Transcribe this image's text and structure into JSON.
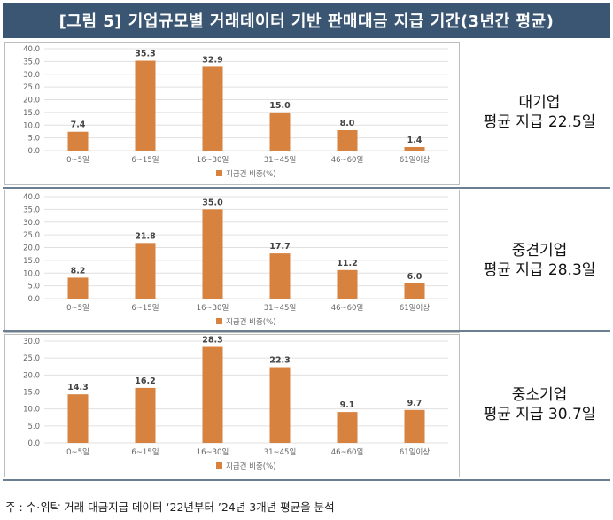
{
  "title": "[그림 5] 기업규모별 거래데이터 기반 판매대금 지급 기간(3년간 평균)",
  "footnote": "주 : 수·위탁 거래 대금지급 데이터 ‘22년부터 ’24년 3개년 평균을 분석",
  "colors": {
    "bar": "#d7823f",
    "header_bg": "#3a5672",
    "grid": "#e0e0e0"
  },
  "chart_data": [
    {
      "type": "bar",
      "categories": [
        "0~5일",
        "6~15일",
        "16~30일",
        "31~45일",
        "46~60일",
        "61일이상"
      ],
      "series": [
        {
          "name": "지급건 비중(%)",
          "values": [
            7.4,
            35.3,
            32.9,
            15.0,
            8.0,
            1.4
          ]
        }
      ],
      "value_labels": [
        "7.4",
        "35.3",
        "32.9",
        "15.0",
        "8.0",
        "1.4"
      ],
      "ylim": [
        0,
        40
      ],
      "yticks": [
        "0.0",
        "5.0",
        "10.0",
        "15.0",
        "20.0",
        "25.0",
        "30.0",
        "35.0",
        "40.0"
      ],
      "legend_position": "bottom",
      "summary_line1": "대기업",
      "summary_line2": "평균 지급 22.5일"
    },
    {
      "type": "bar",
      "categories": [
        "0~5일",
        "6~15일",
        "16~30일",
        "31~45일",
        "46~60일",
        "61일이상"
      ],
      "series": [
        {
          "name": "지급건 비중(%)",
          "values": [
            8.2,
            21.8,
            35.0,
            17.7,
            11.2,
            6.0
          ]
        }
      ],
      "value_labels": [
        "8.2",
        "21.8",
        "35.0",
        "17.7",
        "11.2",
        "6.0"
      ],
      "ylim": [
        0,
        40
      ],
      "yticks": [
        "0.0",
        "5.0",
        "10.0",
        "15.0",
        "20.0",
        "25.0",
        "30.0",
        "35.0",
        "40.0"
      ],
      "legend_position": "bottom",
      "summary_line1": "중견기업",
      "summary_line2": "평균 지급 28.3일"
    },
    {
      "type": "bar",
      "categories": [
        "0~5일",
        "6~15일",
        "16~30일",
        "31~45일",
        "46~60일",
        "61일이상"
      ],
      "series": [
        {
          "name": "지급건 비중(%)",
          "values": [
            14.3,
            16.2,
            28.3,
            22.3,
            9.1,
            9.7
          ]
        }
      ],
      "value_labels": [
        "14.3",
        "16.2",
        "28.3",
        "22.3",
        "9.1",
        "9.7"
      ],
      "ylim": [
        0,
        30
      ],
      "yticks": [
        "0.0",
        "5.0",
        "10.0",
        "15.0",
        "20.0",
        "25.0",
        "30.0"
      ],
      "legend_position": "bottom",
      "summary_line1": "중소기업",
      "summary_line2": "평균 지급 30.7일"
    }
  ]
}
